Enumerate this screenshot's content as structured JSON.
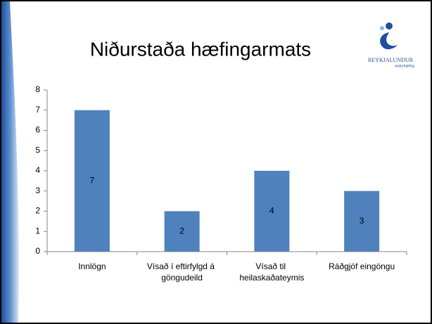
{
  "logo": {
    "name": "REYKJALUNDUR",
    "tagline": "endurhæfing"
  },
  "chart_data": {
    "type": "bar",
    "title": "Niðurstaða hæfingarmats",
    "categories": [
      "Innlögn",
      "Vísað í eftirfylgd á göngudeild",
      "Vísað til heilaskaðateymis",
      "Ráðgjöf eingöngu"
    ],
    "values": [
      7,
      2,
      4,
      3
    ],
    "color": "#4f81bd",
    "ylim": [
      0,
      8
    ],
    "yticks": [
      0,
      1,
      2,
      3,
      4,
      5,
      6,
      7,
      8
    ],
    "grid": false
  }
}
